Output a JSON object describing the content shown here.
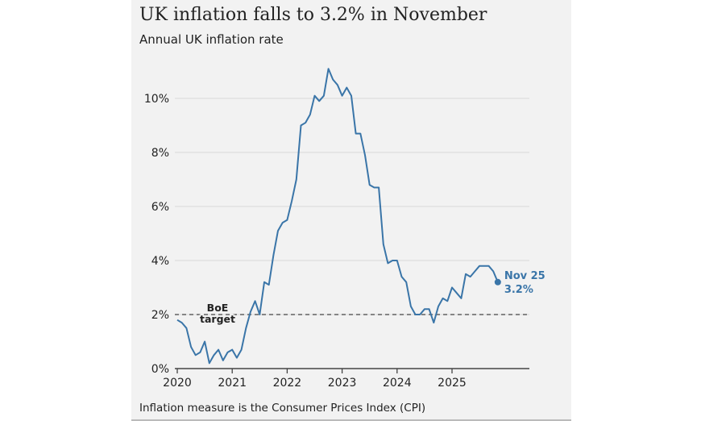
{
  "chart_data": {
    "type": "line",
    "title": "UK inflation falls to 3.2% in November",
    "subtitle": "Annual UK inflation rate",
    "footnote": "Inflation measure is the Consumer Prices Index (CPI)",
    "x_start": "2020-01",
    "x_frequency": "monthly",
    "x_ticks": [
      "2020",
      "2021",
      "2022",
      "2023",
      "2024",
      "2025"
    ],
    "y_ticks": [
      "0%",
      "2%",
      "4%",
      "6%",
      "8%",
      "10%"
    ],
    "y_tick_values": [
      0,
      2,
      4,
      6,
      8,
      10
    ],
    "ylim": [
      0,
      11.2
    ],
    "grid": true,
    "series": [
      {
        "color": "#3a75a8",
        "values": [
          1.8,
          1.7,
          1.5,
          0.8,
          0.5,
          0.6,
          1.0,
          0.2,
          0.5,
          0.7,
          0.3,
          0.6,
          0.7,
          0.4,
          0.7,
          1.5,
          2.1,
          2.5,
          2.0,
          3.2,
          3.1,
          4.2,
          5.1,
          5.4,
          5.5,
          6.2,
          7.0,
          9.0,
          9.1,
          9.4,
          10.1,
          9.9,
          10.1,
          11.1,
          10.7,
          10.5,
          10.1,
          10.4,
          10.1,
          8.7,
          8.7,
          7.9,
          6.8,
          6.7,
          6.7,
          4.6,
          3.9,
          4.0,
          4.0,
          3.4,
          3.2,
          2.3,
          2.0,
          2.0,
          2.2,
          2.2,
          1.7,
          2.3,
          2.6,
          2.5,
          3.0,
          2.8,
          2.6,
          3.5,
          3.4,
          3.6,
          3.8,
          3.8,
          3.8,
          3.6,
          3.2
        ]
      }
    ],
    "reference_line": {
      "value": 2,
      "label_line1": "BoE",
      "label_line2": "target"
    },
    "end_label": {
      "line1": "Nov 25",
      "line2": "3.2%"
    }
  }
}
